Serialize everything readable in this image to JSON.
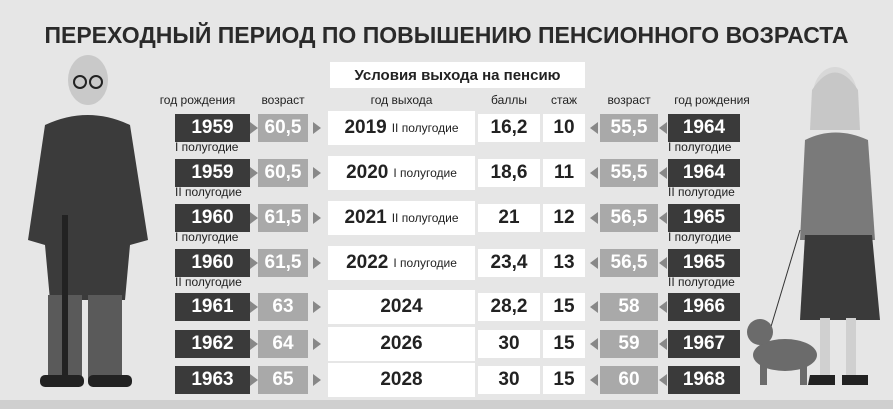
{
  "title": "ПЕРЕХОДНЫЙ ПЕРИОД ПО ПОВЫШЕНИЮ ПЕНСИОННОГО ВОЗРАСТА",
  "subtitle": "Условия выхода на пенсию",
  "headers": {
    "birth_m": "год рождения",
    "age_m": "возраст",
    "exit_year": "год выхода",
    "points": "баллы",
    "stazh": "стаж",
    "age_f": "возраст",
    "birth_f": "год рождения"
  },
  "rows": [
    {
      "birth_m": "1959",
      "birth_m_half": "I полугодие",
      "age_m": "60,5",
      "exit_year": "2019",
      "exit_half": "II полугодие",
      "points": "16,2",
      "stazh": "10",
      "age_f": "55,5",
      "birth_f": "1964",
      "birth_f_half": "I полугодие"
    },
    {
      "birth_m": "1959",
      "birth_m_half": "II полугодие",
      "age_m": "60,5",
      "exit_year": "2020",
      "exit_half": "I полугодие",
      "points": "18,6",
      "stazh": "11",
      "age_f": "55,5",
      "birth_f": "1964",
      "birth_f_half": "II полугодие"
    },
    {
      "birth_m": "1960",
      "birth_m_half": "I полугодие",
      "age_m": "61,5",
      "exit_year": "2021",
      "exit_half": "II полугодие",
      "points": "21",
      "stazh": "12",
      "age_f": "56,5",
      "birth_f": "1965",
      "birth_f_half": "I полугодие"
    },
    {
      "birth_m": "1960",
      "birth_m_half": "II полугодие",
      "age_m": "61,5",
      "exit_year": "2022",
      "exit_half": "I полугодие",
      "points": "23,4",
      "stazh": "13",
      "age_f": "56,5",
      "birth_f": "1965",
      "birth_f_half": "II полугодие"
    },
    {
      "birth_m": "1961",
      "age_m": "63",
      "exit_year": "2024",
      "points": "28,2",
      "stazh": "15",
      "age_f": "58",
      "birth_f": "1966"
    },
    {
      "birth_m": "1962",
      "age_m": "64",
      "exit_year": "2026",
      "points": "30",
      "stazh": "15",
      "age_f": "59",
      "birth_f": "1967"
    },
    {
      "birth_m": "1963",
      "age_m": "65",
      "exit_year": "2028",
      "points": "30",
      "stazh": "15",
      "age_f": "60",
      "birth_f": "1968"
    }
  ]
}
